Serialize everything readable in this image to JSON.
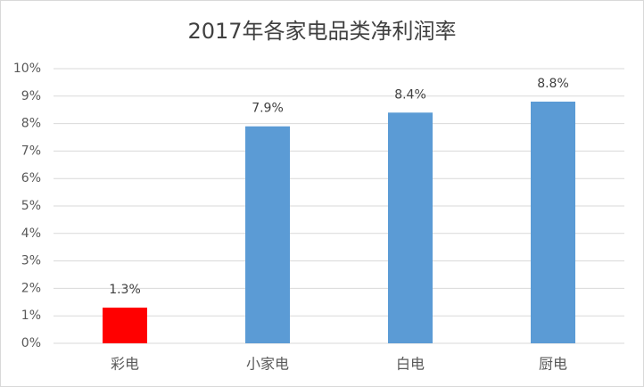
{
  "chart_data": {
    "type": "bar",
    "title": "2017年各家电品类净利润率",
    "categories": [
      "彩电",
      "小家电",
      "白电",
      "厨电"
    ],
    "values": [
      1.3,
      7.9,
      8.4,
      8.8
    ],
    "value_labels": [
      "1.3%",
      "7.9%",
      "8.4%",
      "8.8%"
    ],
    "colors": [
      "#ff0000",
      "#5b9bd5",
      "#5b9bd5",
      "#5b9bd5"
    ],
    "ylim": [
      0,
      10
    ],
    "yticks": [
      {
        "value": 0,
        "label": "0%"
      },
      {
        "value": 1,
        "label": "1%"
      },
      {
        "value": 2,
        "label": "2%"
      },
      {
        "value": 3,
        "label": "3%"
      },
      {
        "value": 4,
        "label": "4%"
      },
      {
        "value": 5,
        "label": "5%"
      },
      {
        "value": 6,
        "label": "6%"
      },
      {
        "value": 7,
        "label": "7%"
      },
      {
        "value": 8,
        "label": "8%"
      },
      {
        "value": 9,
        "label": "9%"
      },
      {
        "value": 10,
        "label": "10%"
      }
    ],
    "grid": true
  }
}
